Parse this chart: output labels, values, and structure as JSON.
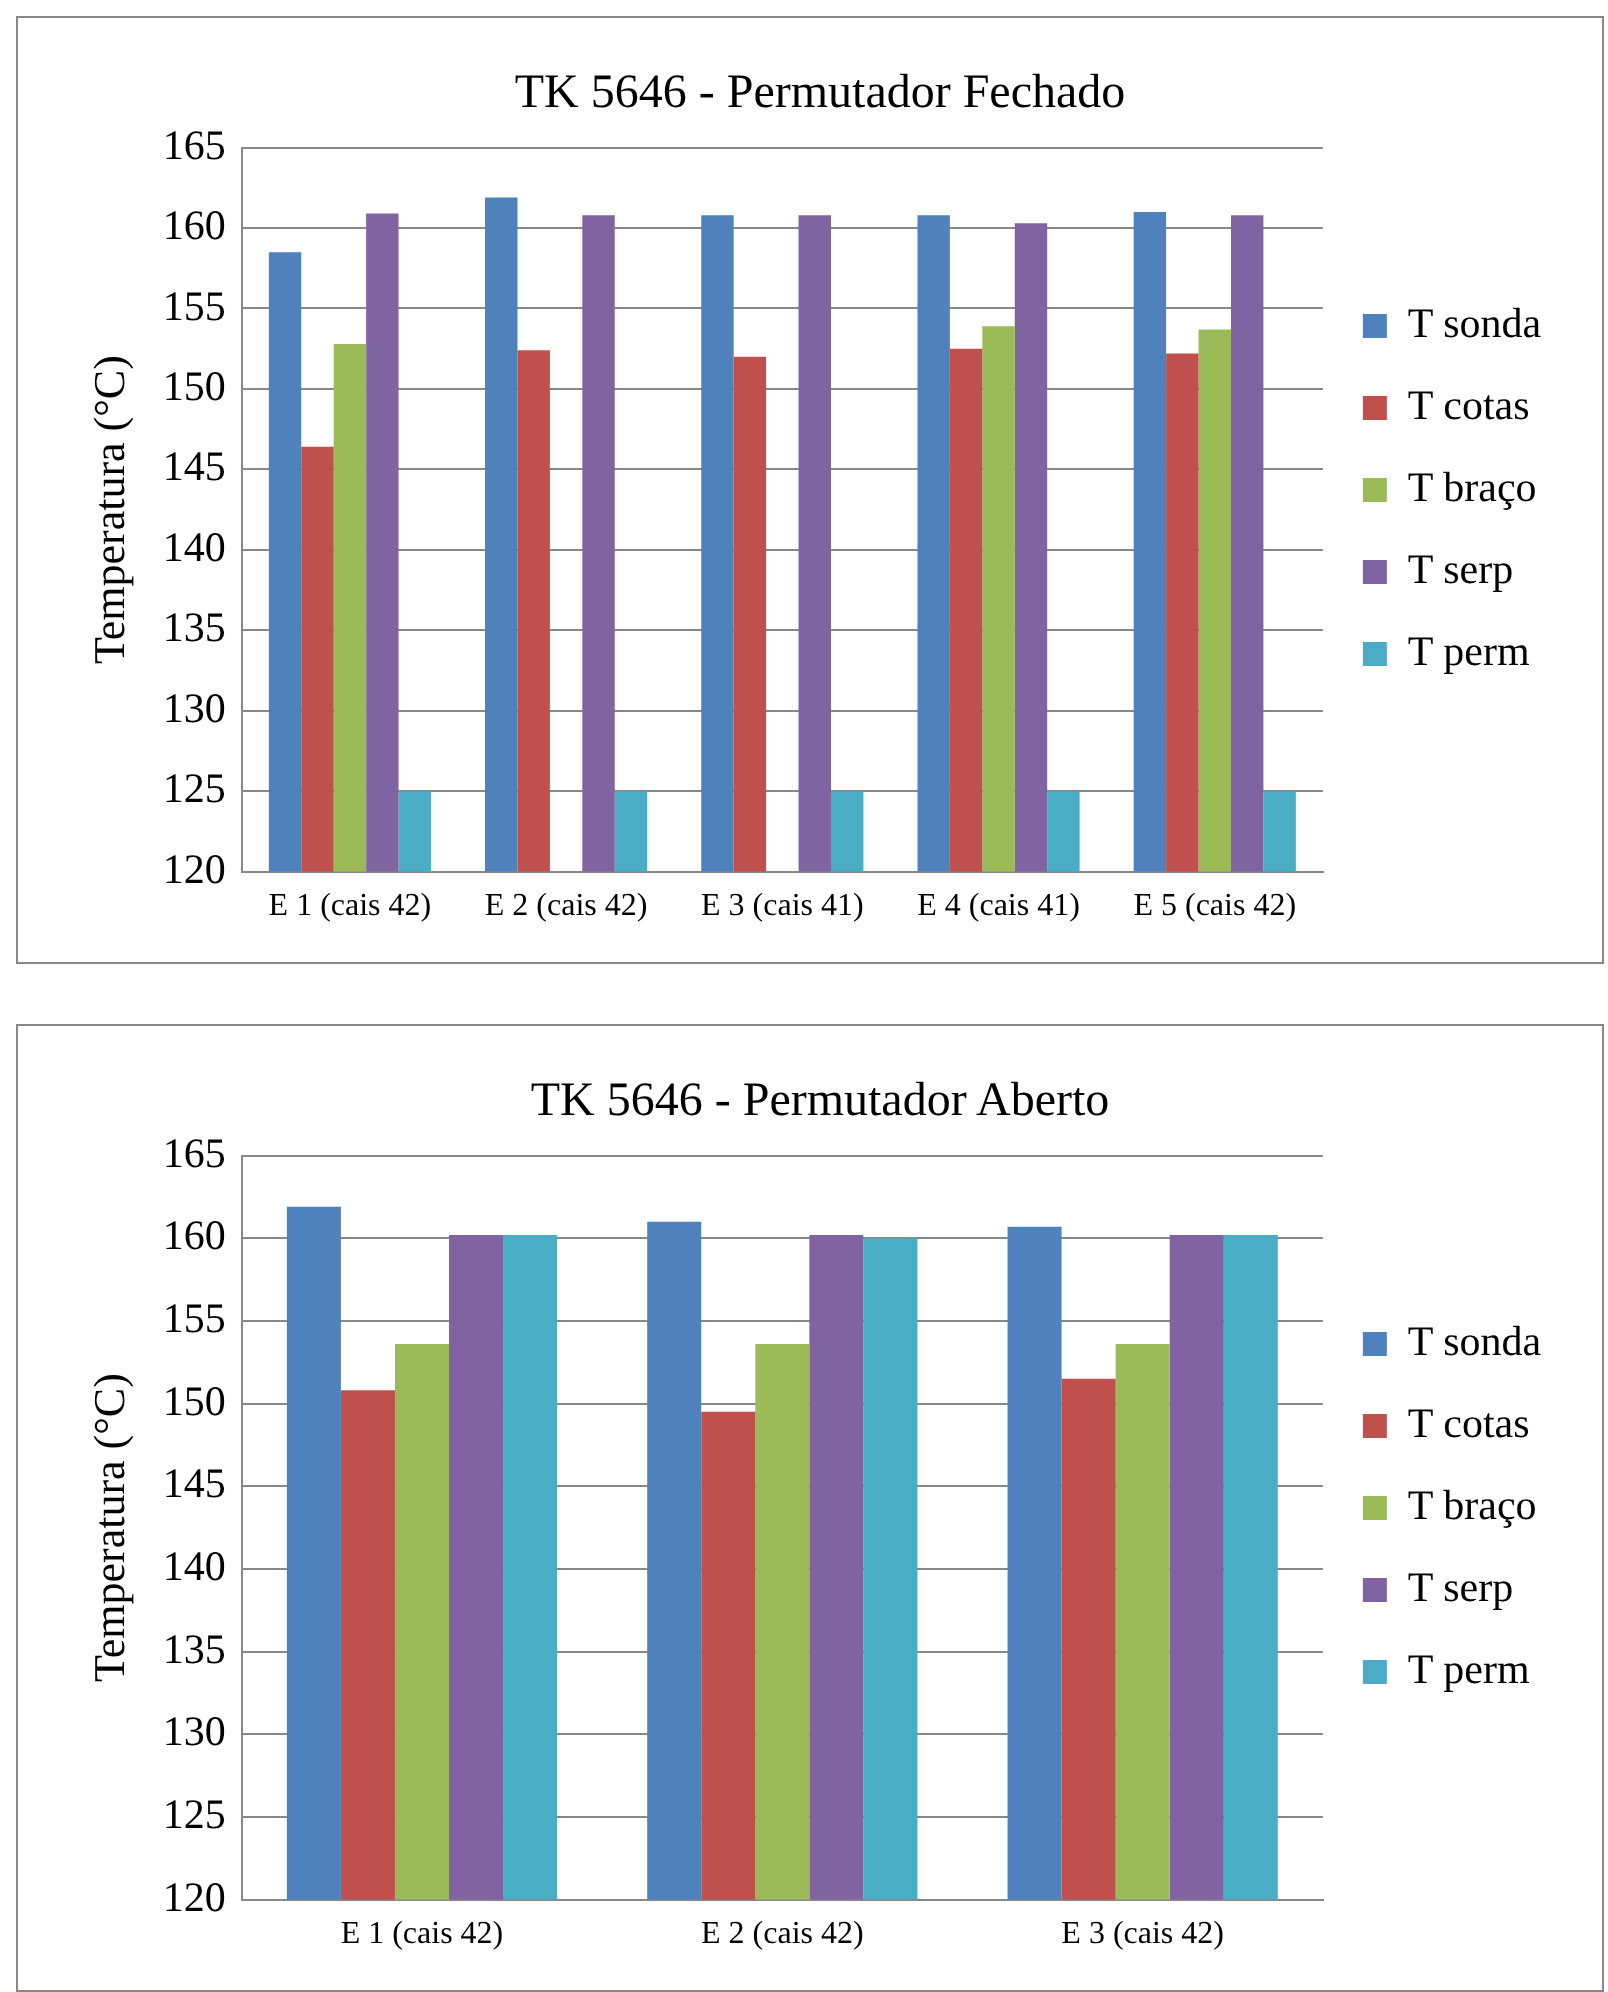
{
  "chart_data": [
    {
      "type": "bar",
      "title": "TK 5646 - Permutador Fechado",
      "ylabel": "Temperatura (°C)",
      "categories": [
        "E 1 (cais 42)",
        "E 2 (cais 42)",
        "E 3 (cais 41)",
        "E 4 (cais 41)",
        "E 5 (cais 42)"
      ],
      "series": [
        {
          "name": "T sonda",
          "color": "#4f81bd",
          "values": [
            158.5,
            161.9,
            160.8,
            160.8,
            161.0
          ]
        },
        {
          "name": "T cotas",
          "color": "#c0504d",
          "values": [
            146.4,
            152.4,
            152.0,
            152.5,
            152.2
          ]
        },
        {
          "name": "T braço",
          "color": "#9bbb59",
          "values": [
            152.8,
            null,
            null,
            153.9,
            153.7
          ]
        },
        {
          "name": "T serp",
          "color": "#8064a2",
          "values": [
            160.9,
            160.8,
            160.8,
            160.3,
            160.8
          ]
        },
        {
          "name": "T perm",
          "color": "#4bacc6",
          "values": [
            125,
            125,
            125,
            125,
            125
          ]
        }
      ],
      "ylim": [
        120,
        165
      ],
      "yticks": [
        120,
        125,
        130,
        135,
        140,
        145,
        150,
        155,
        160,
        165
      ],
      "grid": "y",
      "legend": "right"
    },
    {
      "type": "bar",
      "title": "TK 5646 - Permutador Aberto",
      "ylabel": "Temperatura (°C)",
      "categories": [
        "E 1 (cais 42)",
        "E 2 (cais 42)",
        "E 3 (cais 42)"
      ],
      "series": [
        {
          "name": "T sonda",
          "color": "#4f81bd",
          "values": [
            161.9,
            161.0,
            160.7
          ]
        },
        {
          "name": "T cotas",
          "color": "#c0504d",
          "values": [
            150.8,
            149.5,
            151.5
          ]
        },
        {
          "name": "T braço",
          "color": "#9bbb59",
          "values": [
            153.6,
            153.6,
            153.6
          ]
        },
        {
          "name": "T serp",
          "color": "#8064a2",
          "values": [
            160.2,
            160.2,
            160.2
          ]
        },
        {
          "name": "T perm",
          "color": "#4bacc6",
          "values": [
            160.2,
            160.0,
            160.2
          ]
        }
      ],
      "ylim": [
        120,
        165
      ],
      "yticks": [
        120,
        125,
        130,
        135,
        140,
        145,
        150,
        155,
        160,
        165
      ],
      "grid": "y",
      "legend": "right"
    }
  ]
}
